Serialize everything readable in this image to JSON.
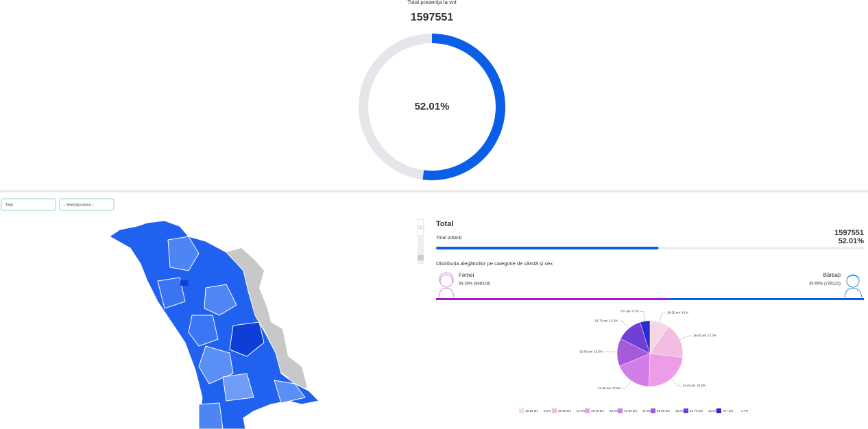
{
  "header": {
    "title": "Total prezența la vot",
    "total": "1597551"
  },
  "filters": {
    "level": "Total",
    "district": "-- Selectați raionul --"
  },
  "panel": {
    "title": "Total",
    "voters_label": "Total votanți",
    "voters": "1597551",
    "turnout": 52.01,
    "turnout_label": "52.01%",
    "distribution_title": "Distribuția alegătorilor pe categorie de vârstă și sex",
    "women": {
      "name": "Femei",
      "share": 54.35,
      "label": "54.35% (868328)"
    },
    "men": {
      "name": "Bărbați",
      "share": 45.65,
      "label": "45.65% (729223)"
    }
  },
  "chart_data": [
    {
      "type": "donut",
      "value": 52.01,
      "value_label": "52.01%",
      "color": "#0a5fe6",
      "track_color": "#e5e6ea"
    },
    {
      "type": "pie",
      "categories": [
        "18-25 ani",
        "26-30 ani",
        "31-40 ani",
        "41-50 ani",
        "51-60 ani",
        "61-70 ani",
        "70+ ani"
      ],
      "values": [
        9.1,
        17.0,
        23.0,
        17.8,
        13.3,
        12.3,
        4.7
      ],
      "value_labels": [
        "9.1%",
        "17.0%",
        "23.0%",
        "17.8%",
        "13.3%",
        "12.3%",
        "4.7%"
      ],
      "colors": [
        "#f6d6e4",
        "#f2bde0",
        "#ee9ce6",
        "#cf7fe6",
        "#a75ad9",
        "#7040d6",
        "#2b2bd0"
      ]
    }
  ]
}
